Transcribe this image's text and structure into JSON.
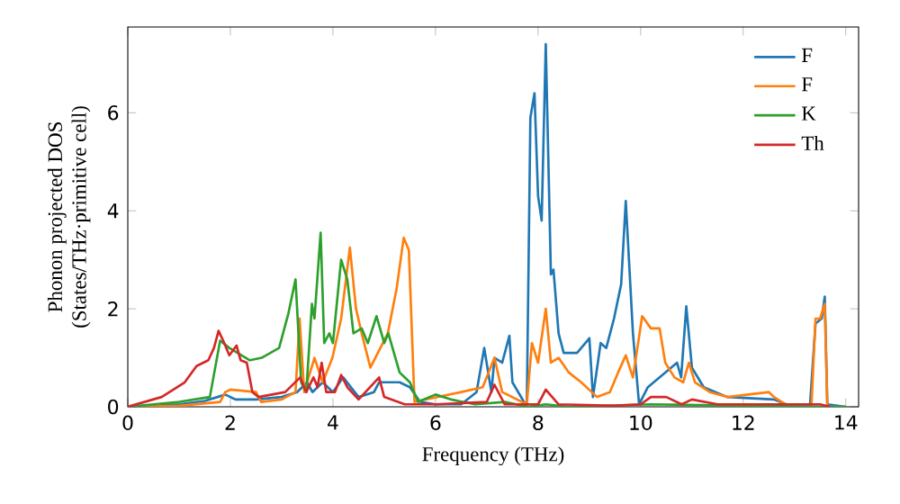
{
  "chart_data": {
    "type": "line",
    "xlabel": "Frequency (THz)",
    "ylabel": "Phonon projected DOS\n(States/THz·primitive cell)",
    "xlim": [
      0,
      14.25
    ],
    "ylim": [
      0,
      7.75
    ],
    "xticks": [
      0,
      2,
      4,
      6,
      8,
      10,
      12,
      14
    ],
    "yticks": [
      0,
      2,
      4,
      6
    ],
    "legend": "top right",
    "grid": false,
    "marker": "none",
    "line_style": "solid",
    "series": [
      {
        "name": "F",
        "color": "#1f77b4",
        "x": [
          0,
          1.0,
          1.5,
          1.75,
          1.9,
          2.1,
          2.5,
          3.0,
          3.3,
          3.5,
          3.6,
          3.8,
          3.9,
          4.0,
          4.2,
          4.5,
          4.8,
          4.9,
          5.1,
          5.3,
          5.5,
          5.7,
          6.0,
          6.5,
          6.8,
          6.95,
          7.09,
          7.15,
          7.3,
          7.44,
          7.5,
          7.78,
          7.85,
          7.93,
          8.0,
          8.07,
          8.15,
          8.25,
          8.3,
          8.4,
          8.5,
          8.76,
          9.0,
          9.07,
          9.22,
          9.33,
          9.48,
          9.62,
          9.71,
          9.85,
          9.97,
          10.14,
          10.37,
          10.71,
          10.79,
          10.89,
          11.0,
          11.23,
          11.69,
          12.6,
          12.84,
          13.3,
          13.41,
          13.53,
          13.59,
          13.64,
          14.0
        ],
        "values": [
          0,
          0.05,
          0.12,
          0.2,
          0.25,
          0.15,
          0.15,
          0.2,
          0.3,
          0.5,
          0.3,
          0.5,
          0.4,
          0.3,
          0.6,
          0.2,
          0.3,
          0.5,
          0.5,
          0.5,
          0.4,
          0.1,
          0.05,
          0.05,
          0.3,
          1.2,
          0.3,
          1.0,
          0.9,
          1.45,
          0.5,
          0.0,
          5.9,
          6.4,
          4.3,
          3.8,
          7.4,
          2.7,
          2.8,
          1.5,
          1.1,
          1.1,
          1.4,
          0.2,
          1.3,
          1.2,
          1.8,
          2.5,
          4.2,
          1.5,
          0.05,
          0.4,
          0.6,
          0.9,
          0.6,
          2.05,
          0.8,
          0.4,
          0.2,
          0.15,
          0.05,
          0.0,
          1.7,
          1.8,
          2.25,
          0.05,
          0
        ]
      },
      {
        "name": "F",
        "color": "#ff7f0e",
        "x": [
          0,
          1.0,
          1.8,
          1.9,
          2.0,
          2.5,
          2.6,
          3.0,
          3.27,
          3.35,
          3.44,
          3.64,
          3.8,
          3.99,
          4.16,
          4.33,
          4.45,
          4.56,
          4.73,
          5.07,
          5.24,
          5.38,
          5.48,
          5.59,
          6.5,
          6.92,
          7.15,
          7.3,
          7.78,
          7.88,
          8.0,
          8.15,
          8.25,
          8.4,
          8.6,
          8.84,
          9.15,
          9.4,
          9.56,
          9.71,
          9.85,
          10.03,
          10.2,
          10.37,
          10.48,
          10.66,
          10.83,
          10.94,
          11.06,
          11.35,
          11.7,
          12.5,
          12.6,
          12.9,
          13.33,
          13.41,
          13.5,
          13.59,
          13.64,
          14.0
        ],
        "values": [
          0,
          0.02,
          0.1,
          0.3,
          0.35,
          0.3,
          0.1,
          0.15,
          0.3,
          1.8,
          0.3,
          1.0,
          0.5,
          1.0,
          1.8,
          3.25,
          2.0,
          1.5,
          0.8,
          1.5,
          2.4,
          3.45,
          3.2,
          0.1,
          0.3,
          0.4,
          1.0,
          0.3,
          0.05,
          1.3,
          0.9,
          2.0,
          0.9,
          1.0,
          0.7,
          0.5,
          0.2,
          0.3,
          0.7,
          1.05,
          0.6,
          1.85,
          1.6,
          1.6,
          0.9,
          0.6,
          0.5,
          0.9,
          0.5,
          0.3,
          0.2,
          0.3,
          0.2,
          0.0,
          0.0,
          1.8,
          1.8,
          2.1,
          0.0,
          0
        ]
      },
      {
        "name": "K",
        "color": "#2ca02c",
        "x": [
          0,
          1.0,
          1.6,
          1.8,
          1.98,
          2.38,
          2.61,
          2.95,
          3.13,
          3.27,
          3.38,
          3.48,
          3.59,
          3.64,
          3.76,
          3.83,
          3.93,
          4.0,
          4.16,
          4.28,
          4.4,
          4.56,
          4.68,
          4.85,
          5.0,
          5.08,
          5.3,
          5.5,
          5.66,
          6.0,
          6.3,
          6.77,
          7.35,
          7.8,
          8.15,
          8.6,
          10.2,
          12.0,
          14.0
        ],
        "values": [
          0,
          0.1,
          0.2,
          1.35,
          1.2,
          0.95,
          1.0,
          1.2,
          1.9,
          2.6,
          0.5,
          0.3,
          2.1,
          1.8,
          3.55,
          1.3,
          1.5,
          1.3,
          3.0,
          2.6,
          1.5,
          1.6,
          1.3,
          1.85,
          1.3,
          1.5,
          0.7,
          0.5,
          0.1,
          0.25,
          0.15,
          0.05,
          0.1,
          0.0,
          0.05,
          0.0,
          0.05,
          0.02,
          0
        ]
      },
      {
        "name": "Th",
        "color": "#d62728",
        "x": [
          0,
          0.66,
          1.11,
          1.34,
          1.57,
          1.68,
          1.77,
          1.86,
          1.98,
          2.12,
          2.2,
          2.32,
          2.43,
          2.55,
          3.07,
          3.36,
          3.48,
          3.62,
          3.7,
          3.78,
          3.87,
          4.04,
          4.16,
          4.28,
          4.5,
          4.9,
          5.0,
          5.4,
          6.0,
          7.0,
          7.15,
          7.35,
          8.0,
          8.15,
          8.4,
          9.5,
          10.0,
          10.2,
          10.5,
          10.8,
          11.0,
          11.5,
          12.5,
          13.5,
          13.7
        ],
        "values": [
          0,
          0.2,
          0.5,
          0.83,
          0.95,
          1.2,
          1.55,
          1.35,
          1.05,
          1.25,
          0.95,
          0.9,
          0.3,
          0.2,
          0.3,
          0.6,
          0.3,
          0.6,
          0.4,
          0.9,
          0.3,
          0.3,
          0.65,
          0.4,
          0.15,
          0.6,
          0.2,
          0.05,
          0.05,
          0.1,
          0.45,
          0.05,
          0.05,
          0.35,
          0.05,
          0.02,
          0.05,
          0.2,
          0.2,
          0.05,
          0.15,
          0.05,
          0.05,
          0.05,
          0
        ]
      }
    ]
  }
}
